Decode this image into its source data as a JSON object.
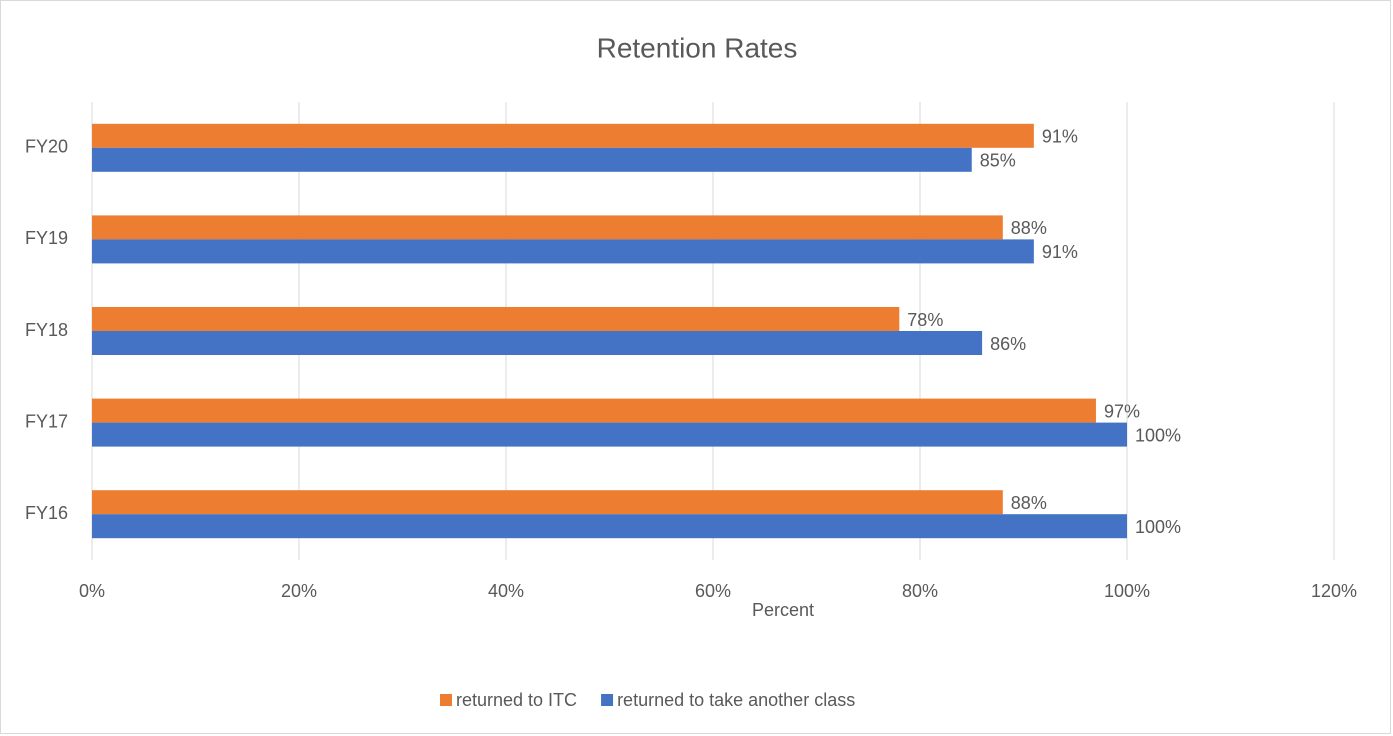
{
  "chart_data": {
    "type": "bar",
    "orientation": "horizontal",
    "title": "Retention Rates",
    "x_label": "Percent",
    "categories": [
      "FY16",
      "FY17",
      "FY18",
      "FY19",
      "FY20"
    ],
    "series": [
      {
        "name": "returned to ITC",
        "color": "#ed7d31",
        "values": [
          88,
          97,
          78,
          88,
          91
        ],
        "value_labels": [
          "88%",
          "97%",
          "78%",
          "88%",
          "91%"
        ]
      },
      {
        "name": "returned to take another class",
        "color": "#4472c4",
        "values": [
          100,
          100,
          86,
          91,
          85
        ],
        "value_labels": [
          "100%",
          "100%",
          "86%",
          "91%",
          "85%"
        ]
      }
    ],
    "xlim": [
      0,
      120
    ],
    "xticks": [
      {
        "value": 0,
        "label": "0%"
      },
      {
        "value": 20,
        "label": "20%"
      },
      {
        "value": 40,
        "label": "40%"
      },
      {
        "value": 60,
        "label": "60%"
      },
      {
        "value": 80,
        "label": "80%"
      },
      {
        "value": 100,
        "label": "100%"
      },
      {
        "value": 120,
        "label": "120%"
      }
    ],
    "grid": true,
    "legend": "bottom"
  }
}
